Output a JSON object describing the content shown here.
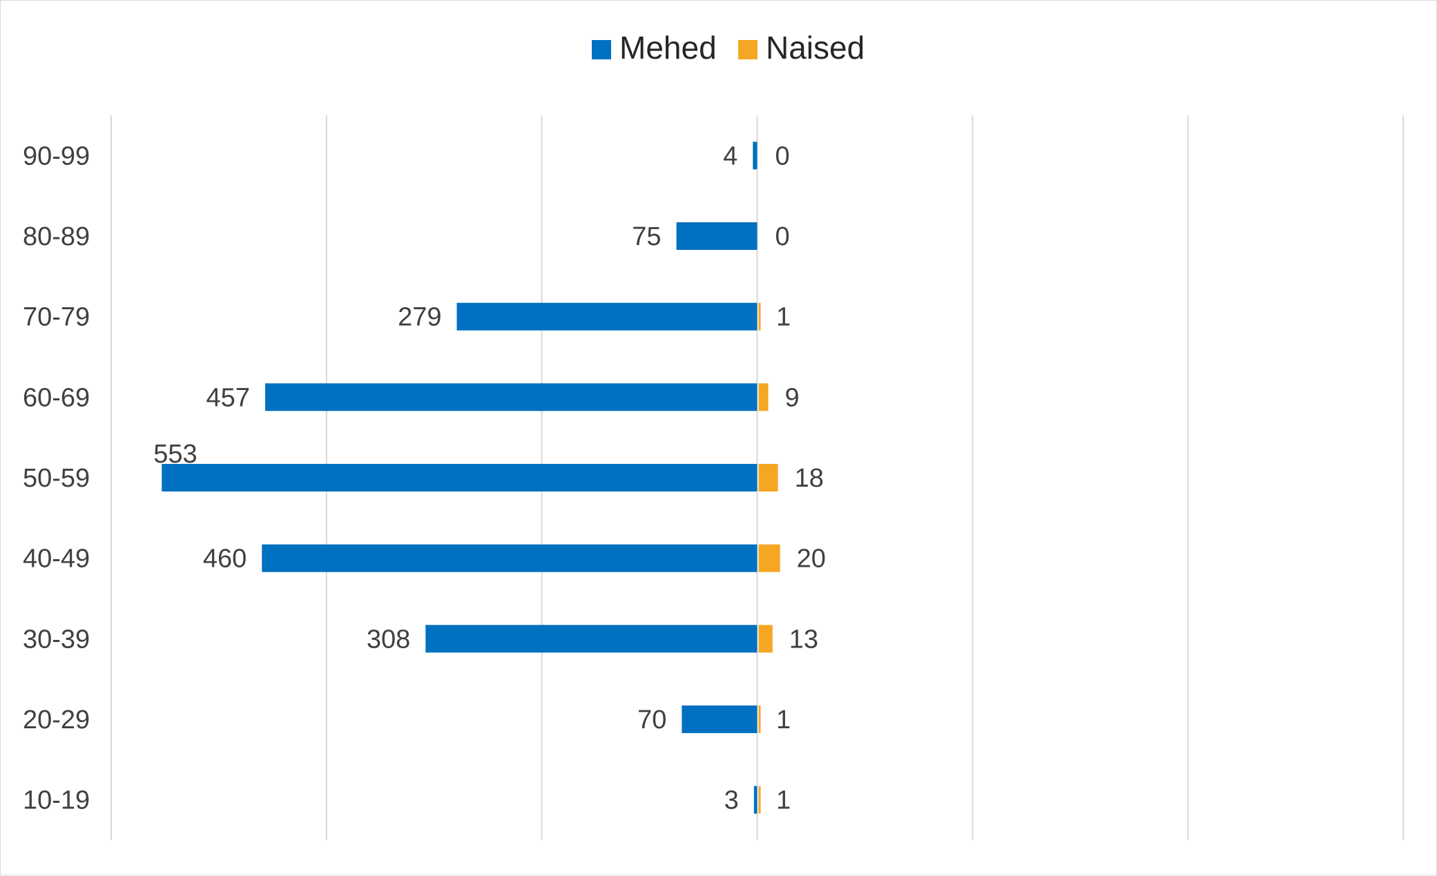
{
  "chart_data": {
    "type": "bar",
    "orientation": "horizontal",
    "layout": "population-pyramid",
    "title": "",
    "xlabel": "",
    "ylabel": "",
    "categories": [
      "90-99",
      "80-89",
      "70-79",
      "60-69",
      "50-59",
      "40-49",
      "30-39",
      "20-29",
      "10-19"
    ],
    "series": [
      {
        "name": "Mehed",
        "color": "#0070C0",
        "direction": "left",
        "values": [
          4,
          75,
          279,
          457,
          553,
          460,
          308,
          70,
          3
        ]
      },
      {
        "name": "Naised",
        "color": "#F5A623",
        "direction": "right",
        "values": [
          0,
          0,
          1,
          9,
          18,
          20,
          13,
          1,
          1
        ]
      }
    ],
    "xlim": [
      -600,
      600
    ],
    "grid_step": 200,
    "grid": true,
    "legend_position": "top-center"
  }
}
